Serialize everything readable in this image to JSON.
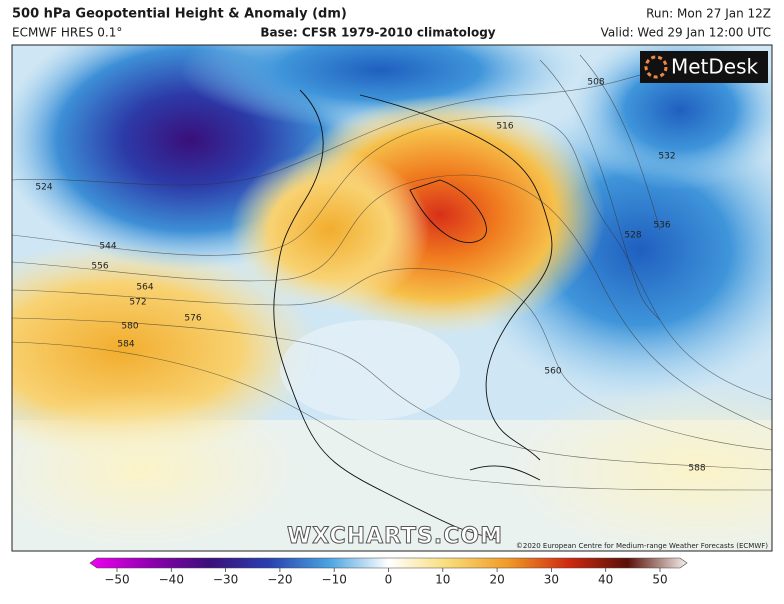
{
  "header": {
    "title": "500 hPa Geopotential Height & Anomaly (dm)",
    "model": "ECMWF HRES 0.1°",
    "base": "Base: CFSR 1979-2010 climatology",
    "run": "Run: Mon 27 Jan 12Z",
    "valid": "Valid: Wed 29 Jan 12:00 UTC"
  },
  "logo": "MetDesk",
  "watermark": "WXCHARTS.COM",
  "copyright": "©2020 European Centre for Medium-range Weather Forecasts (ECMWF)",
  "contour_labels": [
    "524",
    "544",
    "556",
    "564",
    "572",
    "580",
    "584",
    "576",
    "560",
    "528",
    "536",
    "532",
    "588",
    "508",
    "516"
  ],
  "colorbar": {
    "range": [
      -50,
      50
    ],
    "ticks": [
      {
        "value": -50,
        "label": "−50"
      },
      {
        "value": -40,
        "label": "−40"
      },
      {
        "value": -30,
        "label": "−30"
      },
      {
        "value": -20,
        "label": "−20"
      },
      {
        "value": -10,
        "label": "−10"
      },
      0,
      10,
      20,
      30,
      40,
      50
    ]
  }
}
